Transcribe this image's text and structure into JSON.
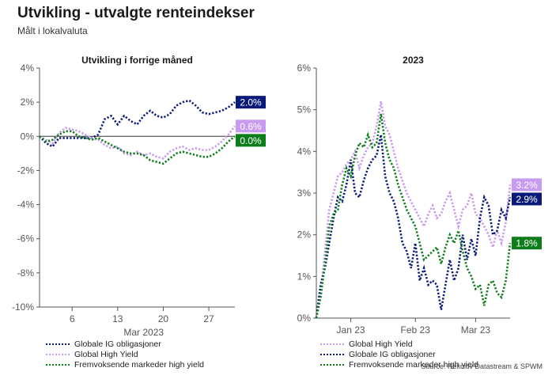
{
  "header": {
    "title": "Utvikling - utvalgte renteindekser",
    "subtitle": "Målt i lokalvaluta"
  },
  "source": "Source: Refinitiv Datastream & SPWM",
  "colors": {
    "ig": "#0a1a7a",
    "hy": "#c89af0",
    "em": "#0d7d1a",
    "axis": "#555555"
  },
  "chart_data": [
    {
      "type": "line",
      "title": "Utvikling i forrige måned",
      "xlabel": "Mar 2023",
      "x_ticks": [
        "6",
        "13",
        "20",
        "27"
      ],
      "y_ticks": [
        "4%",
        "2%",
        "0%",
        "-2%",
        "-4%",
        "-6%",
        "-8%",
        "-10%"
      ],
      "ylim": [
        -10,
        4
      ],
      "x_domain": [
        1,
        31
      ],
      "x_tick_values": [
        6,
        13,
        20,
        27
      ],
      "series": [
        {
          "name": "Globale IG obligasjoner",
          "color_key": "ig",
          "end_label": "2.0%",
          "x": [
            1,
            2,
            3,
            4,
            5,
            6,
            7,
            8,
            9,
            10,
            11,
            12,
            13,
            14,
            15,
            16,
            17,
            18,
            19,
            20,
            21,
            22,
            23,
            24,
            25,
            26,
            27,
            28,
            29,
            30,
            31
          ],
          "values": [
            0.0,
            -0.4,
            -0.6,
            -0.1,
            -0.1,
            -0.1,
            -0.1,
            -0.1,
            -0.1,
            0.1,
            1.0,
            1.2,
            0.7,
            1.2,
            0.9,
            0.7,
            1.2,
            1.5,
            1.2,
            1.1,
            1.3,
            1.8,
            2.0,
            2.1,
            1.8,
            1.4,
            1.3,
            1.4,
            1.5,
            1.7,
            2.0
          ]
        },
        {
          "name": "Global High Yield",
          "color_key": "hy",
          "end_label": "0.6%",
          "x": [
            1,
            2,
            3,
            4,
            5,
            6,
            7,
            8,
            9,
            10,
            11,
            12,
            13,
            14,
            15,
            16,
            17,
            18,
            19,
            20,
            21,
            22,
            23,
            24,
            25,
            26,
            27,
            28,
            29,
            30,
            31
          ],
          "values": [
            0.0,
            -0.2,
            -0.4,
            0.2,
            0.5,
            0.4,
            0.3,
            0.1,
            -0.1,
            -0.2,
            -0.5,
            -0.7,
            -0.6,
            -1.0,
            -1.1,
            -0.9,
            -1.1,
            -1.0,
            -1.2,
            -1.3,
            -0.9,
            -0.7,
            -0.6,
            -0.8,
            -0.7,
            -0.8,
            -0.8,
            -0.6,
            -0.3,
            0.1,
            0.6
          ]
        },
        {
          "name": "Fremvoksende markeder high yield",
          "color_key": "em",
          "end_label": "0.0%",
          "x": [
            1,
            2,
            3,
            4,
            5,
            6,
            7,
            8,
            9,
            10,
            11,
            12,
            13,
            14,
            15,
            16,
            17,
            18,
            19,
            20,
            21,
            22,
            23,
            24,
            25,
            26,
            27,
            28,
            29,
            30,
            31
          ],
          "values": [
            0.0,
            -0.3,
            -0.2,
            0.1,
            0.3,
            0.3,
            0.0,
            -0.1,
            -0.2,
            -0.1,
            -0.3,
            -0.5,
            -0.7,
            -0.9,
            -1.0,
            -1.0,
            -1.1,
            -1.4,
            -1.5,
            -1.6,
            -1.3,
            -1.0,
            -0.9,
            -1.0,
            -1.1,
            -1.2,
            -1.2,
            -1.0,
            -0.7,
            -0.3,
            0.0
          ]
        }
      ],
      "legend": [
        "Globale IG obligasjoner",
        "Global High Yield",
        "Fremvoksende markeder high yield"
      ]
    },
    {
      "type": "line",
      "title": "2023",
      "x_ticks": [
        "Jan 23",
        "Feb 23",
        "Mar 23"
      ],
      "y_ticks": [
        "6%",
        "5%",
        "4%",
        "3%",
        "2%",
        "1%",
        "0%"
      ],
      "ylim": [
        0,
        6
      ],
      "x_domain": [
        0,
        90
      ],
      "x_tick_values": [
        16,
        46,
        74
      ],
      "series": [
        {
          "name": "Global High Yield",
          "color_key": "hy",
          "end_label": "3.2%",
          "x": [
            0,
            2,
            4,
            6,
            8,
            10,
            12,
            14,
            16,
            18,
            20,
            22,
            24,
            26,
            28,
            30,
            32,
            34,
            36,
            38,
            40,
            42,
            44,
            46,
            48,
            50,
            52,
            54,
            56,
            58,
            60,
            62,
            64,
            66,
            68,
            70,
            72,
            74,
            76,
            78,
            80,
            82,
            84,
            86,
            88,
            90
          ],
          "values": [
            0.0,
            0.6,
            1.6,
            2.6,
            3.0,
            3.4,
            3.5,
            3.7,
            3.8,
            4.0,
            3.6,
            3.9,
            4.1,
            4.2,
            4.6,
            5.2,
            4.6,
            4.4,
            4.0,
            3.6,
            3.3,
            3.0,
            2.8,
            2.6,
            2.4,
            2.2,
            2.5,
            2.7,
            2.4,
            2.5,
            2.8,
            3.0,
            2.6,
            2.2,
            2.6,
            2.7,
            3.0,
            2.5,
            2.4,
            2.2,
            2.0,
            1.7,
            2.1,
            1.8,
            2.3,
            3.2
          ]
        },
        {
          "name": "Globale IG obligasjoner",
          "color_key": "ig",
          "end_label": "2.9%",
          "x": [
            0,
            2,
            4,
            6,
            8,
            10,
            12,
            14,
            16,
            18,
            20,
            22,
            24,
            26,
            28,
            30,
            32,
            34,
            36,
            38,
            40,
            42,
            44,
            46,
            48,
            50,
            52,
            54,
            56,
            58,
            60,
            62,
            64,
            66,
            68,
            70,
            72,
            74,
            76,
            78,
            80,
            82,
            84,
            86,
            88,
            90
          ],
          "values": [
            0.0,
            0.8,
            1.2,
            1.8,
            2.4,
            2.9,
            2.8,
            3.2,
            3.8,
            3.0,
            2.9,
            3.3,
            3.6,
            3.8,
            3.9,
            4.4,
            3.4,
            3.0,
            2.8,
            2.4,
            1.8,
            1.6,
            1.2,
            1.8,
            0.9,
            1.2,
            0.8,
            0.9,
            0.8,
            0.2,
            0.8,
            1.4,
            0.9,
            1.2,
            2.0,
            1.4,
            1.9,
            1.5,
            2.4,
            2.9,
            2.7,
            2.0,
            2.1,
            2.6,
            2.4,
            2.9
          ]
        },
        {
          "name": "Fremvoksende markeder high yield",
          "color_key": "em",
          "end_label": "1.8%",
          "x": [
            0,
            2,
            4,
            6,
            8,
            10,
            12,
            14,
            16,
            18,
            20,
            22,
            24,
            26,
            28,
            30,
            32,
            34,
            36,
            38,
            40,
            42,
            44,
            46,
            48,
            50,
            52,
            54,
            56,
            58,
            60,
            62,
            64,
            66,
            68,
            70,
            72,
            74,
            76,
            78,
            80,
            82,
            84,
            86,
            88,
            90
          ],
          "values": [
            0.0,
            0.5,
            1.3,
            2.2,
            2.5,
            2.6,
            3.2,
            3.6,
            3.4,
            3.9,
            4.2,
            4.1,
            4.4,
            4.1,
            4.2,
            4.9,
            4.2,
            3.8,
            3.6,
            3.2,
            2.9,
            2.6,
            2.4,
            2.2,
            1.8,
            1.4,
            1.5,
            1.6,
            1.7,
            1.3,
            1.7,
            2.0,
            1.8,
            2.1,
            1.6,
            1.2,
            1.0,
            0.7,
            0.8,
            0.3,
            0.8,
            0.9,
            0.6,
            0.5,
            0.9,
            1.8
          ]
        }
      ],
      "legend": [
        "Global High Yield",
        "Globale IG obligasjoner",
        "Fremvoksende markeder high yield"
      ]
    }
  ]
}
